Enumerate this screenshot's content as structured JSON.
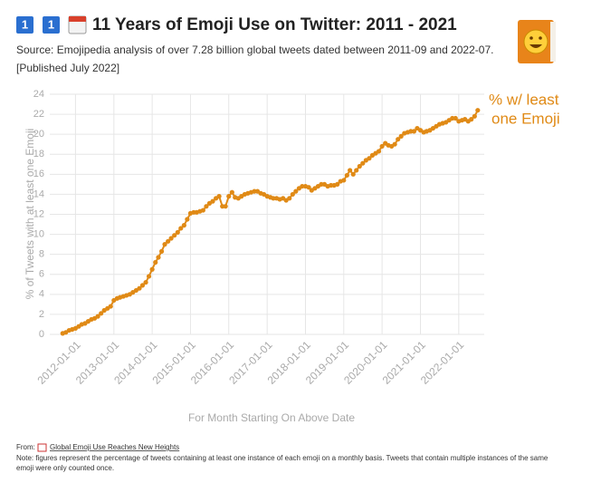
{
  "chart_data": {
    "type": "line",
    "title": "11 Years of Emoji Use on Twitter: 2011 - 2021",
    "subtitle": "Source: Emojipedia analysis of over 7.28 billion global tweets dated between 2011-09 and 2022-07.",
    "published": "[Published July 2022]",
    "annotation": [
      "% w/ least",
      "one Emoji"
    ],
    "x_label": "For Month Starting On Above Date",
    "y_label": "% of Tweets with at least one Emoji",
    "color": "#e08a16",
    "grid": true,
    "x": [
      "2011-09-01",
      "2011-10-01",
      "2011-11-01",
      "2011-12-01",
      "2012-01-01",
      "2012-02-01",
      "2012-03-01",
      "2012-04-01",
      "2012-05-01",
      "2012-06-01",
      "2012-07-01",
      "2012-08-01",
      "2012-09-01",
      "2012-10-01",
      "2012-11-01",
      "2012-12-01",
      "2013-01-01",
      "2013-02-01",
      "2013-03-01",
      "2013-04-01",
      "2013-05-01",
      "2013-06-01",
      "2013-07-01",
      "2013-08-01",
      "2013-09-01",
      "2013-10-01",
      "2013-11-01",
      "2013-12-01",
      "2014-01-01",
      "2014-02-01",
      "2014-03-01",
      "2014-04-01",
      "2014-05-01",
      "2014-06-01",
      "2014-07-01",
      "2014-08-01",
      "2014-09-01",
      "2014-10-01",
      "2014-11-01",
      "2014-12-01",
      "2015-01-01",
      "2015-02-01",
      "2015-03-01",
      "2015-04-01",
      "2015-05-01",
      "2015-06-01",
      "2015-07-01",
      "2015-08-01",
      "2015-09-01",
      "2015-10-01",
      "2015-11-01",
      "2015-12-01",
      "2016-01-01",
      "2016-02-01",
      "2016-03-01",
      "2016-04-01",
      "2016-05-01",
      "2016-06-01",
      "2016-07-01",
      "2016-08-01",
      "2016-09-01",
      "2016-10-01",
      "2016-11-01",
      "2016-12-01",
      "2017-01-01",
      "2017-02-01",
      "2017-03-01",
      "2017-04-01",
      "2017-05-01",
      "2017-06-01",
      "2017-07-01",
      "2017-08-01",
      "2017-09-01",
      "2017-10-01",
      "2017-11-01",
      "2017-12-01",
      "2018-01-01",
      "2018-02-01",
      "2018-03-01",
      "2018-04-01",
      "2018-05-01",
      "2018-06-01",
      "2018-07-01",
      "2018-08-01",
      "2018-09-01",
      "2018-10-01",
      "2018-11-01",
      "2018-12-01",
      "2019-01-01",
      "2019-02-01",
      "2019-03-01",
      "2019-04-01",
      "2019-05-01",
      "2019-06-01",
      "2019-07-01",
      "2019-08-01",
      "2019-09-01",
      "2019-10-01",
      "2019-11-01",
      "2019-12-01",
      "2020-01-01",
      "2020-02-01",
      "2020-03-01",
      "2020-04-01",
      "2020-05-01",
      "2020-06-01",
      "2020-07-01",
      "2020-08-01",
      "2020-09-01",
      "2020-10-01",
      "2020-11-01",
      "2020-12-01",
      "2021-01-01",
      "2021-02-01",
      "2021-03-01",
      "2021-04-01",
      "2021-05-01",
      "2021-06-01",
      "2021-07-01",
      "2021-08-01",
      "2021-09-01",
      "2021-10-01",
      "2021-11-01",
      "2021-12-01",
      "2022-01-01",
      "2022-02-01",
      "2022-03-01",
      "2022-04-01",
      "2022-05-01",
      "2022-06-01",
      "2022-07-01"
    ],
    "values": [
      0.1,
      0.2,
      0.4,
      0.5,
      0.6,
      0.8,
      1.0,
      1.1,
      1.3,
      1.5,
      1.6,
      1.8,
      2.1,
      2.4,
      2.6,
      2.8,
      3.4,
      3.6,
      3.7,
      3.8,
      3.9,
      4.0,
      4.2,
      4.4,
      4.6,
      4.9,
      5.2,
      5.8,
      6.5,
      7.2,
      7.7,
      8.3,
      9.0,
      9.3,
      9.6,
      9.9,
      10.2,
      10.6,
      10.9,
      11.5,
      12.1,
      12.2,
      12.2,
      12.3,
      12.4,
      12.8,
      13.1,
      13.3,
      13.6,
      13.8,
      12.8,
      12.8,
      13.8,
      14.2,
      13.7,
      13.6,
      13.8,
      14.0,
      14.1,
      14.2,
      14.3,
      14.3,
      14.1,
      14.0,
      13.8,
      13.7,
      13.6,
      13.6,
      13.5,
      13.6,
      13.4,
      13.6,
      14.0,
      14.3,
      14.6,
      14.8,
      14.8,
      14.7,
      14.4,
      14.6,
      14.8,
      15.0,
      15.0,
      14.8,
      14.9,
      14.9,
      15.0,
      15.3,
      15.4,
      15.9,
      16.4,
      16.0,
      16.4,
      16.8,
      17.1,
      17.4,
      17.6,
      17.9,
      18.1,
      18.3,
      18.8,
      19.1,
      18.9,
      18.8,
      19.0,
      19.5,
      19.8,
      20.1,
      20.2,
      20.3,
      20.3,
      20.6,
      20.4,
      20.2,
      20.3,
      20.4,
      20.6,
      20.8,
      21.0,
      21.1,
      21.2,
      21.4,
      21.6,
      21.6,
      21.3,
      21.4,
      21.5,
      21.3,
      21.5,
      21.8,
      22.4
    ],
    "xlim": [
      "2011-05-01",
      "2022-09-01"
    ],
    "xticks": [
      "2012-01-01",
      "2013-01-01",
      "2014-01-01",
      "2015-01-01",
      "2016-01-01",
      "2017-01-01",
      "2018-01-01",
      "2019-01-01",
      "2020-01-01",
      "2021-01-01",
      "2022-01-01"
    ],
    "ylim": [
      0,
      24
    ],
    "yticks": [
      0,
      2,
      4,
      6,
      8,
      10,
      12,
      14,
      16,
      18,
      20,
      22,
      24
    ],
    "source_prefix": "From:",
    "source_link": "Global Emoji Use Reaches New Heights",
    "note": [
      "Note: figures represent the percentage of tweets containing at least one instance of each emoji on a monthly basis. Tweets that contain multiple instances of the same",
      "emoji were only counted once."
    ]
  }
}
